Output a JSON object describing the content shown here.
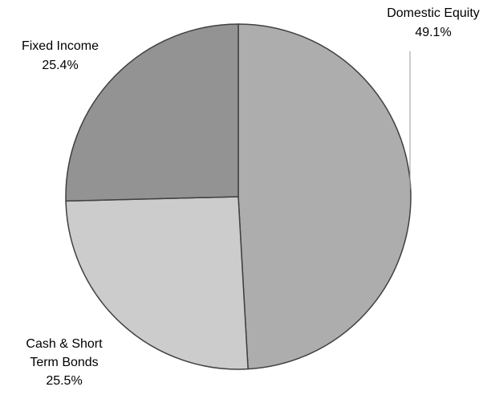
{
  "chart_data": {
    "type": "pie",
    "title": "",
    "slices": [
      {
        "label": "Domestic Equity",
        "value": 49.1,
        "value_label": "49.1%",
        "color": "#adadad"
      },
      {
        "label": "Cash & Short Term Bonds",
        "value": 25.5,
        "value_label": "25.5%",
        "color": "#cccccc"
      },
      {
        "label": "Fixed Income",
        "value": 25.4,
        "value_label": "25.4%",
        "color": "#939393"
      }
    ],
    "start_position": "12 o'clock",
    "direction": "clockwise",
    "legend": "none",
    "labels_outside": true,
    "border_color": "#404040"
  }
}
